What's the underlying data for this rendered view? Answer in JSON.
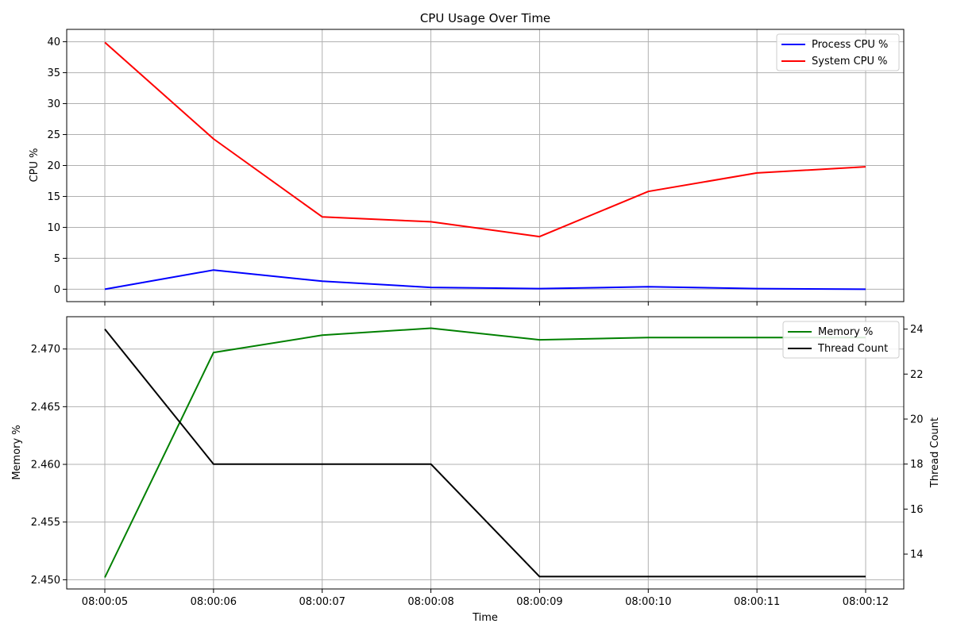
{
  "chart_data": [
    {
      "type": "line",
      "title": "CPU Usage Over Time",
      "xlabel": "",
      "ylabel": "CPU %",
      "ylim": [
        -2,
        42
      ],
      "yticks": [
        0,
        5,
        10,
        15,
        20,
        25,
        30,
        35,
        40
      ],
      "x": [
        "08:00:05",
        "08:00:06",
        "08:00:07",
        "08:00:08",
        "08:00:09",
        "08:00:10",
        "08:00:11",
        "08:00:12"
      ],
      "grid": true,
      "legend": "top-right",
      "series": [
        {
          "name": "Process CPU %",
          "color": "#0000ff",
          "values": [
            0.0,
            3.1,
            1.3,
            0.3,
            0.1,
            0.4,
            0.1,
            0.0
          ]
        },
        {
          "name": "System CPU %",
          "color": "#ff0000",
          "values": [
            39.9,
            24.3,
            11.7,
            10.9,
            8.5,
            15.8,
            18.8,
            19.8
          ]
        }
      ]
    },
    {
      "type": "line",
      "title": "",
      "xlabel": "Time",
      "ylabel": "Memory %",
      "ylabel_right": "Thread Count",
      "ylim": [
        2.4492,
        2.4728
      ],
      "ylim_right": [
        12.45,
        24.55
      ],
      "yticks": [
        "2.450",
        "2.455",
        "2.460",
        "2.465",
        "2.470"
      ],
      "yticks_right": [
        14,
        16,
        18,
        20,
        22,
        24
      ],
      "x": [
        "08:00:05",
        "08:00:06",
        "08:00:07",
        "08:00:08",
        "08:00:09",
        "08:00:10",
        "08:00:11",
        "08:00:12"
      ],
      "grid": true,
      "legend": "top-right",
      "series": [
        {
          "name": "Memory %",
          "axis": "left",
          "color": "#008000",
          "values": [
            2.4502,
            2.4697,
            2.4712,
            2.4718,
            2.4708,
            2.471,
            2.471,
            2.471
          ]
        },
        {
          "name": "Thread Count",
          "axis": "right",
          "color": "#000000",
          "values": [
            24,
            18,
            18,
            18,
            13,
            13,
            13,
            13
          ]
        }
      ]
    }
  ]
}
